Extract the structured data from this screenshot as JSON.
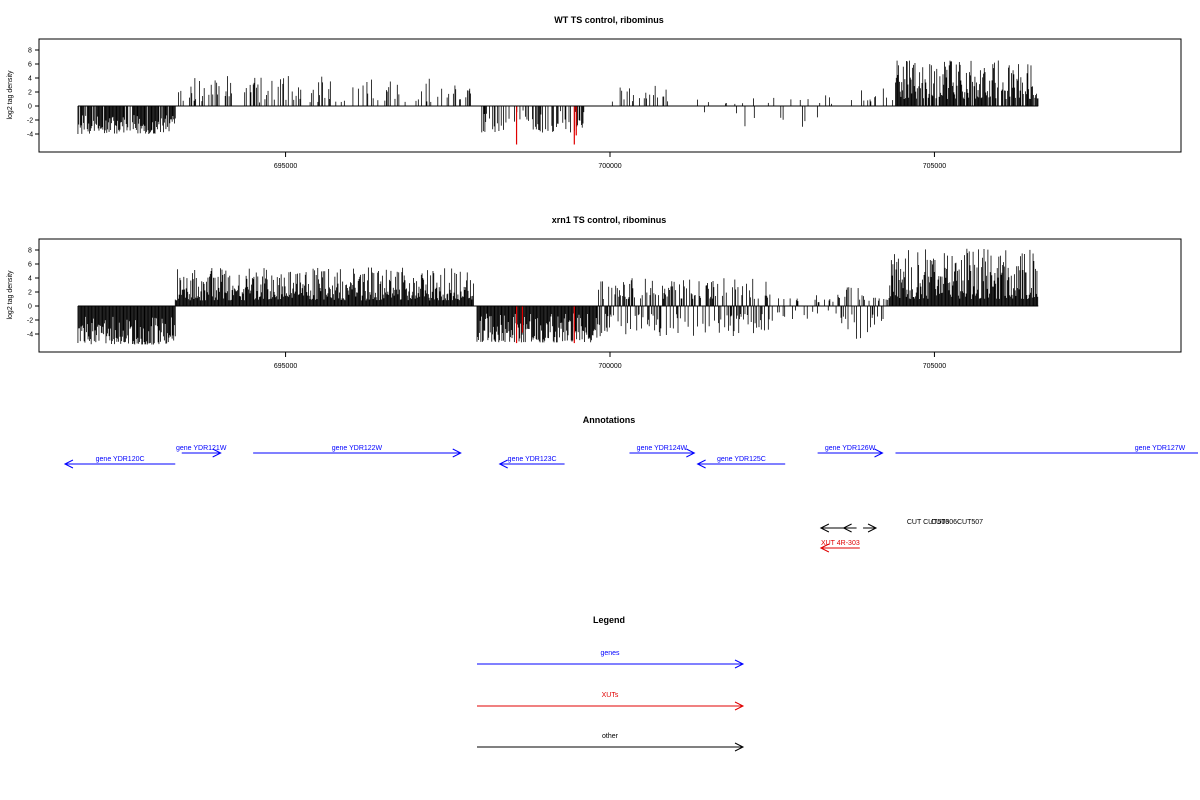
{
  "chart_data": [
    {
      "id": "wt",
      "type": "bar",
      "title": "WT TS control, ribominus",
      "ylabel": "log2 tag density",
      "xlim": [
        691200,
        708800
      ],
      "ylim": [
        -6,
        9
      ],
      "yticks": [
        -4,
        -2,
        0,
        2,
        4,
        6,
        8
      ],
      "xticks": [
        695000,
        700000,
        705000
      ],
      "xtick_labels": [
        "695000",
        "700000",
        "705000"
      ],
      "bar_color": "#000000",
      "highlight_color": "#e00000",
      "segments": [
        {
          "start": 691800,
          "end": 693300,
          "min": -4.0,
          "max": -1.2,
          "density": 0.9,
          "sign": -1
        },
        {
          "start": 693350,
          "end": 697900,
          "min": 0.5,
          "max": 4.3,
          "density": 0.3,
          "sign": 1
        },
        {
          "start": 698000,
          "end": 699700,
          "min": -3.8,
          "max": -0.6,
          "density": 0.4,
          "sign": -1
        },
        {
          "start": 700000,
          "end": 700900,
          "min": 0.6,
          "max": 3.0,
          "density": 0.12,
          "sign": 1
        },
        {
          "start": 701300,
          "end": 703600,
          "min": -3.0,
          "max": 1.2,
          "density": 0.1,
          "sign": 0
        },
        {
          "start": 703300,
          "end": 704400,
          "min": 0.6,
          "max": 2.8,
          "density": 0.15,
          "sign": 1
        },
        {
          "start": 704400,
          "end": 706600,
          "min": 1.0,
          "max": 6.5,
          "density": 0.85,
          "sign": 1
        }
      ],
      "highlights": [
        {
          "x": 698560,
          "y": -5.5
        },
        {
          "x": 699450,
          "y": -5.5
        },
        {
          "x": 699480,
          "y": -4.2
        }
      ]
    },
    {
      "id": "xrn1",
      "type": "bar",
      "title": "xrn1 TS control, ribominus",
      "ylabel": "log2 tag density",
      "xlim": [
        691200,
        708800
      ],
      "ylim": [
        -6,
        9
      ],
      "yticks": [
        -4,
        -2,
        0,
        2,
        4,
        6,
        8
      ],
      "xticks": [
        695000,
        700000,
        705000
      ],
      "xtick_labels": [
        "695000",
        "700000",
        "705000"
      ],
      "bar_color": "#000000",
      "highlight_color": "#e00000",
      "segments": [
        {
          "start": 691800,
          "end": 693300,
          "min": -5.5,
          "max": -1.5,
          "density": 1.0,
          "sign": -1
        },
        {
          "start": 693300,
          "end": 697900,
          "min": 0.8,
          "max": 5.5,
          "density": 1.0,
          "sign": 1
        },
        {
          "start": 697950,
          "end": 699800,
          "min": -5.2,
          "max": -1.0,
          "density": 1.0,
          "sign": -1
        },
        {
          "start": 699800,
          "end": 702500,
          "min": -4.5,
          "max": 4.0,
          "density": 0.8,
          "sign": 0
        },
        {
          "start": 702500,
          "end": 703500,
          "min": -2.5,
          "max": 2.0,
          "density": 0.3,
          "sign": 0
        },
        {
          "start": 703500,
          "end": 704300,
          "min": -4.8,
          "max": 3.0,
          "density": 0.6,
          "sign": 0
        },
        {
          "start": 704300,
          "end": 706600,
          "min": 1.0,
          "max": 8.2,
          "density": 1.0,
          "sign": 1
        }
      ],
      "highlights": [
        {
          "x": 698560,
          "y": -5.3
        },
        {
          "x": 698650,
          "y": -3.8
        },
        {
          "x": 699450,
          "y": -5.3
        }
      ]
    }
  ],
  "annotations": {
    "title": "Annotations",
    "genes": [
      {
        "label": "gene YDR120C",
        "start": 693300,
        "end": 691600,
        "row": 1
      },
      {
        "label": "gene YDR121W",
        "start": 693400,
        "end": 694000,
        "row": 0
      },
      {
        "label": "gene YDR122W",
        "start": 694500,
        "end": 697700,
        "row": 0
      },
      {
        "label": "gene YDR123C",
        "start": 699300,
        "end": 698300,
        "row": 1
      },
      {
        "label": "gene YDR124W",
        "start": 700300,
        "end": 701300,
        "row": 0
      },
      {
        "label": "gene YDR125C",
        "start": 702700,
        "end": 701350,
        "row": 1
      },
      {
        "label": "gene YDR126W",
        "start": 703200,
        "end": 704200,
        "row": 0
      },
      {
        "label": "gene YDR127W",
        "start": 704400,
        "end": 709400,
        "row": 0
      }
    ],
    "other": [
      {
        "label": "CUT CUT506",
        "start": 703700,
        "end": 703250
      },
      {
        "label": "CUT306",
        "start": 703800,
        "end": 703600
      },
      {
        "label": "CUT507",
        "start": 703900,
        "end": 704100
      }
    ],
    "xuts": [
      {
        "label": "XUT 4R-303",
        "start": 703850,
        "end": 703250
      }
    ]
  },
  "legend": {
    "title": "Legend",
    "items": [
      {
        "label": "genes",
        "color": "#0000ff"
      },
      {
        "label": "XUTs",
        "color": "#e00000"
      },
      {
        "label": "other",
        "color": "#000000"
      }
    ]
  },
  "colors": {
    "gene": "#0000ff",
    "xut": "#e00000",
    "other": "#000000",
    "axis": "#000000"
  }
}
